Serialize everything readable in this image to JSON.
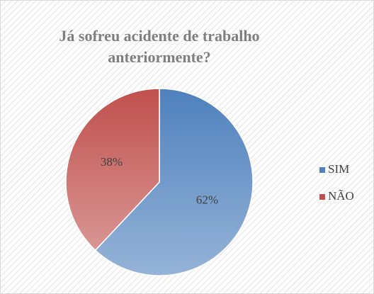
{
  "chart_data": {
    "type": "pie",
    "title": "Já sofreu acidente de trabalho anteriormente?",
    "categories": [
      "SIM",
      "NÃO"
    ],
    "values": [
      62,
      38
    ],
    "value_labels": [
      "62%",
      "38%"
    ],
    "colors": [
      "#4f81bd",
      "#c0504d"
    ],
    "legend": "right"
  }
}
